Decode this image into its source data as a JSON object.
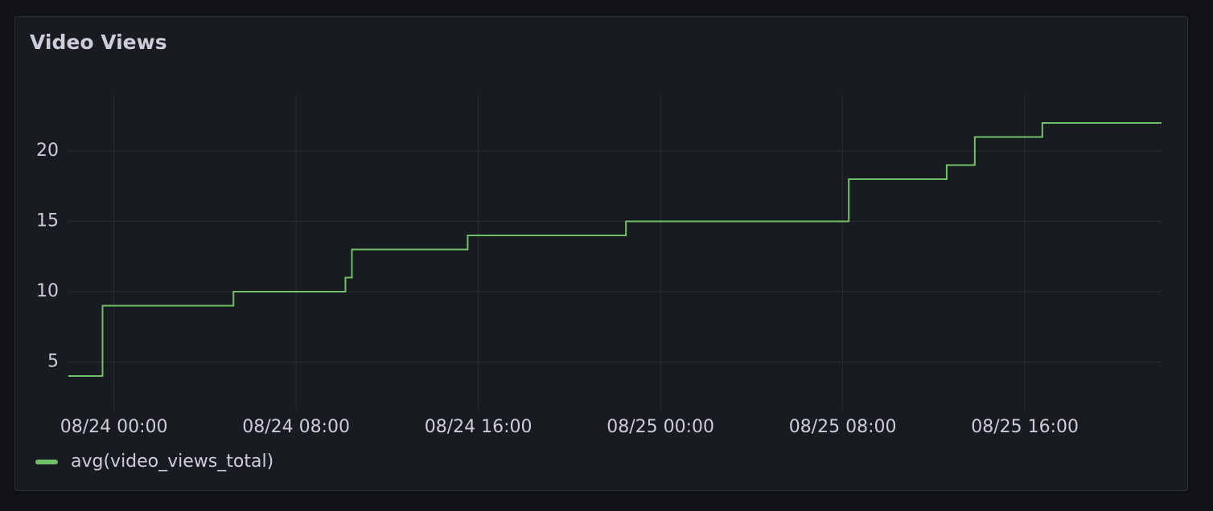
{
  "chart_data": {
    "type": "line",
    "title": "Video Views",
    "x": [
      "08/23 22:00",
      "08/23 23:30",
      "08/24 05:15",
      "08/24 10:10",
      "08/24 10:27",
      "08/24 15:32",
      "08/24 22:29",
      "08/25 08:16",
      "08/25 12:34",
      "08/25 13:48",
      "08/25 16:46",
      "08/25 22:00"
    ],
    "series": [
      {
        "name": "avg(video_views_total)",
        "color": "#73bf69",
        "values": [
          4,
          9,
          10,
          11,
          13,
          14,
          15,
          18,
          19,
          21,
          22,
          22
        ]
      }
    ],
    "xlim": [
      "08/23 22:00",
      "08/25 22:00"
    ],
    "xticks": [
      "08/24 00:00",
      "08/24 08:00",
      "08/24 16:00",
      "08/25 00:00",
      "08/25 08:00",
      "08/25 16:00"
    ],
    "ylim": [
      1.6,
      24
    ],
    "yticks": [
      5,
      10,
      15,
      20
    ],
    "grid": true,
    "step": true,
    "legend": "bottom-left"
  }
}
